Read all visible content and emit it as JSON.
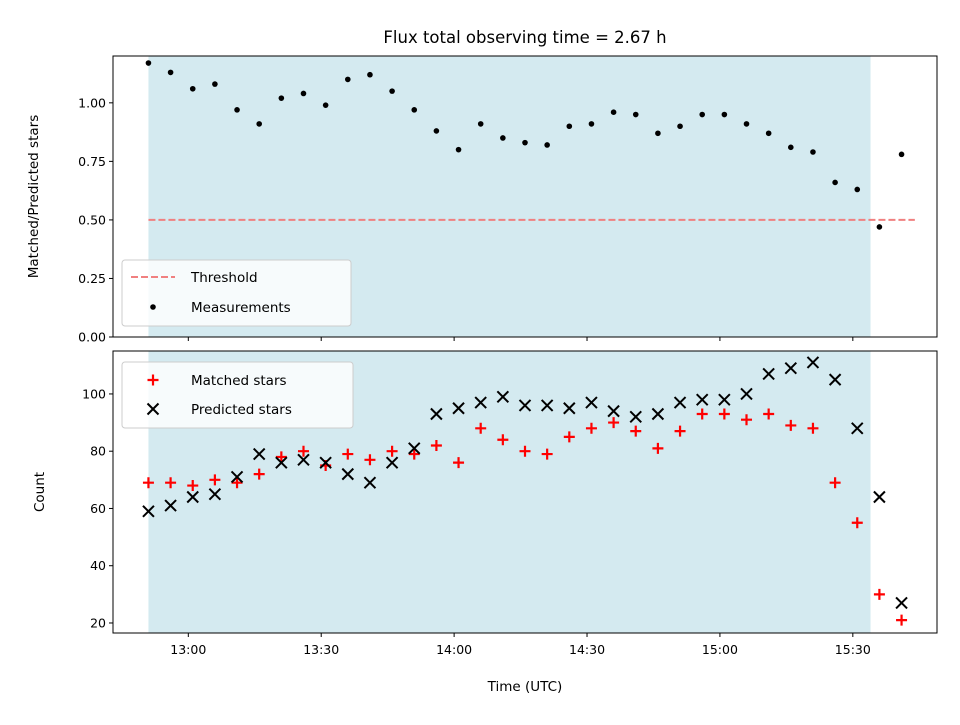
{
  "chart_data": [
    {
      "type": "scatter",
      "title": "Flux total observing time = 2.67 h",
      "ylabel": "Matched/Predicted stars",
      "xlabel": "",
      "ylim": [
        0,
        1.2
      ],
      "yticks": [
        0.0,
        0.25,
        0.5,
        0.75,
        1.0
      ],
      "ytick_labels": [
        "0.00",
        "0.25",
        "0.50",
        "0.75",
        "1.00"
      ],
      "xlim": [
        "12:43",
        "15:49"
      ],
      "observing_window": [
        "12:51",
        "15:34"
      ],
      "shade_color": "#d4eaf0",
      "threshold": {
        "name": "Threshold",
        "value": 0.5,
        "x_range": [
          "12:51",
          "15:44"
        ],
        "color": "#f08080",
        "style": "dashed"
      },
      "series": [
        {
          "name": "Measurements",
          "marker": "dot",
          "color": "#000000",
          "points": [
            [
              "12:51",
              1.17
            ],
            [
              "12:56",
              1.13
            ],
            [
              "13:01",
              1.06
            ],
            [
              "13:06",
              1.08
            ],
            [
              "13:11",
              0.97
            ],
            [
              "13:16",
              0.91
            ],
            [
              "13:21",
              1.02
            ],
            [
              "13:26",
              1.04
            ],
            [
              "13:31",
              0.99
            ],
            [
              "13:36",
              1.1
            ],
            [
              "13:41",
              1.12
            ],
            [
              "13:46",
              1.05
            ],
            [
              "13:51",
              0.97
            ],
            [
              "13:56",
              0.88
            ],
            [
              "14:01",
              0.8
            ],
            [
              "14:06",
              0.91
            ],
            [
              "14:11",
              0.85
            ],
            [
              "14:16",
              0.83
            ],
            [
              "14:21",
              0.82
            ],
            [
              "14:26",
              0.9
            ],
            [
              "14:31",
              0.91
            ],
            [
              "14:36",
              0.96
            ],
            [
              "14:41",
              0.95
            ],
            [
              "14:46",
              0.87
            ],
            [
              "14:51",
              0.9
            ],
            [
              "14:56",
              0.95
            ],
            [
              "15:01",
              0.95
            ],
            [
              "15:06",
              0.91
            ],
            [
              "15:11",
              0.87
            ],
            [
              "15:16",
              0.81
            ],
            [
              "15:21",
              0.79
            ],
            [
              "15:26",
              0.66
            ],
            [
              "15:31",
              0.63
            ],
            [
              "15:36",
              0.47
            ],
            [
              "15:41",
              0.78
            ]
          ]
        }
      ],
      "legend_placement": "lower-left"
    },
    {
      "type": "scatter",
      "title": "",
      "ylabel": "Count",
      "xlabel": "Time (UTC)",
      "ylim": [
        16.5,
        115
      ],
      "yticks": [
        20,
        40,
        60,
        80,
        100
      ],
      "ytick_labels": [
        "20",
        "40",
        "60",
        "80",
        "100"
      ],
      "xlim": [
        "12:43",
        "15:49"
      ],
      "xtick_labels": [
        "13:00",
        "13:30",
        "14:00",
        "14:30",
        "15:00",
        "15:30"
      ],
      "observing_window": [
        "12:51",
        "15:34"
      ],
      "shade_color": "#d4eaf0",
      "series": [
        {
          "name": "Matched stars",
          "marker": "plus",
          "color": "#ff0000",
          "points": [
            [
              "12:51",
              69
            ],
            [
              "12:56",
              69
            ],
            [
              "13:01",
              68
            ],
            [
              "13:06",
              70
            ],
            [
              "13:11",
              69
            ],
            [
              "13:16",
              72
            ],
            [
              "13:21",
              78
            ],
            [
              "13:26",
              80
            ],
            [
              "13:31",
              75
            ],
            [
              "13:36",
              79
            ],
            [
              "13:41",
              77
            ],
            [
              "13:46",
              80
            ],
            [
              "13:51",
              79
            ],
            [
              "13:56",
              82
            ],
            [
              "14:01",
              76
            ],
            [
              "14:06",
              88
            ],
            [
              "14:11",
              84
            ],
            [
              "14:16",
              80
            ],
            [
              "14:21",
              79
            ],
            [
              "14:26",
              85
            ],
            [
              "14:31",
              88
            ],
            [
              "14:36",
              90
            ],
            [
              "14:41",
              87
            ],
            [
              "14:46",
              81
            ],
            [
              "14:51",
              87
            ],
            [
              "14:56",
              93
            ],
            [
              "15:01",
              93
            ],
            [
              "15:06",
              91
            ],
            [
              "15:11",
              93
            ],
            [
              "15:16",
              89
            ],
            [
              "15:21",
              88
            ],
            [
              "15:26",
              69
            ],
            [
              "15:31",
              55
            ],
            [
              "15:36",
              30
            ],
            [
              "15:41",
              21
            ]
          ]
        },
        {
          "name": "Predicted stars",
          "marker": "x",
          "color": "#000000",
          "points": [
            [
              "12:51",
              59
            ],
            [
              "12:56",
              61
            ],
            [
              "13:01",
              64
            ],
            [
              "13:06",
              65
            ],
            [
              "13:11",
              71
            ],
            [
              "13:16",
              79
            ],
            [
              "13:21",
              76
            ],
            [
              "13:26",
              77
            ],
            [
              "13:31",
              76
            ],
            [
              "13:36",
              72
            ],
            [
              "13:41",
              69
            ],
            [
              "13:46",
              76
            ],
            [
              "13:51",
              81
            ],
            [
              "13:56",
              93
            ],
            [
              "14:01",
              95
            ],
            [
              "14:06",
              97
            ],
            [
              "14:11",
              99
            ],
            [
              "14:16",
              96
            ],
            [
              "14:21",
              96
            ],
            [
              "14:26",
              95
            ],
            [
              "14:31",
              97
            ],
            [
              "14:36",
              94
            ],
            [
              "14:41",
              92
            ],
            [
              "14:46",
              93
            ],
            [
              "14:51",
              97
            ],
            [
              "14:56",
              98
            ],
            [
              "15:01",
              98
            ],
            [
              "15:06",
              100
            ],
            [
              "15:11",
              107
            ],
            [
              "15:16",
              109
            ],
            [
              "15:21",
              111
            ],
            [
              "15:26",
              105
            ],
            [
              "15:31",
              88
            ],
            [
              "15:36",
              64
            ],
            [
              "15:41",
              27
            ]
          ]
        }
      ],
      "legend_placement": "upper-left"
    }
  ]
}
